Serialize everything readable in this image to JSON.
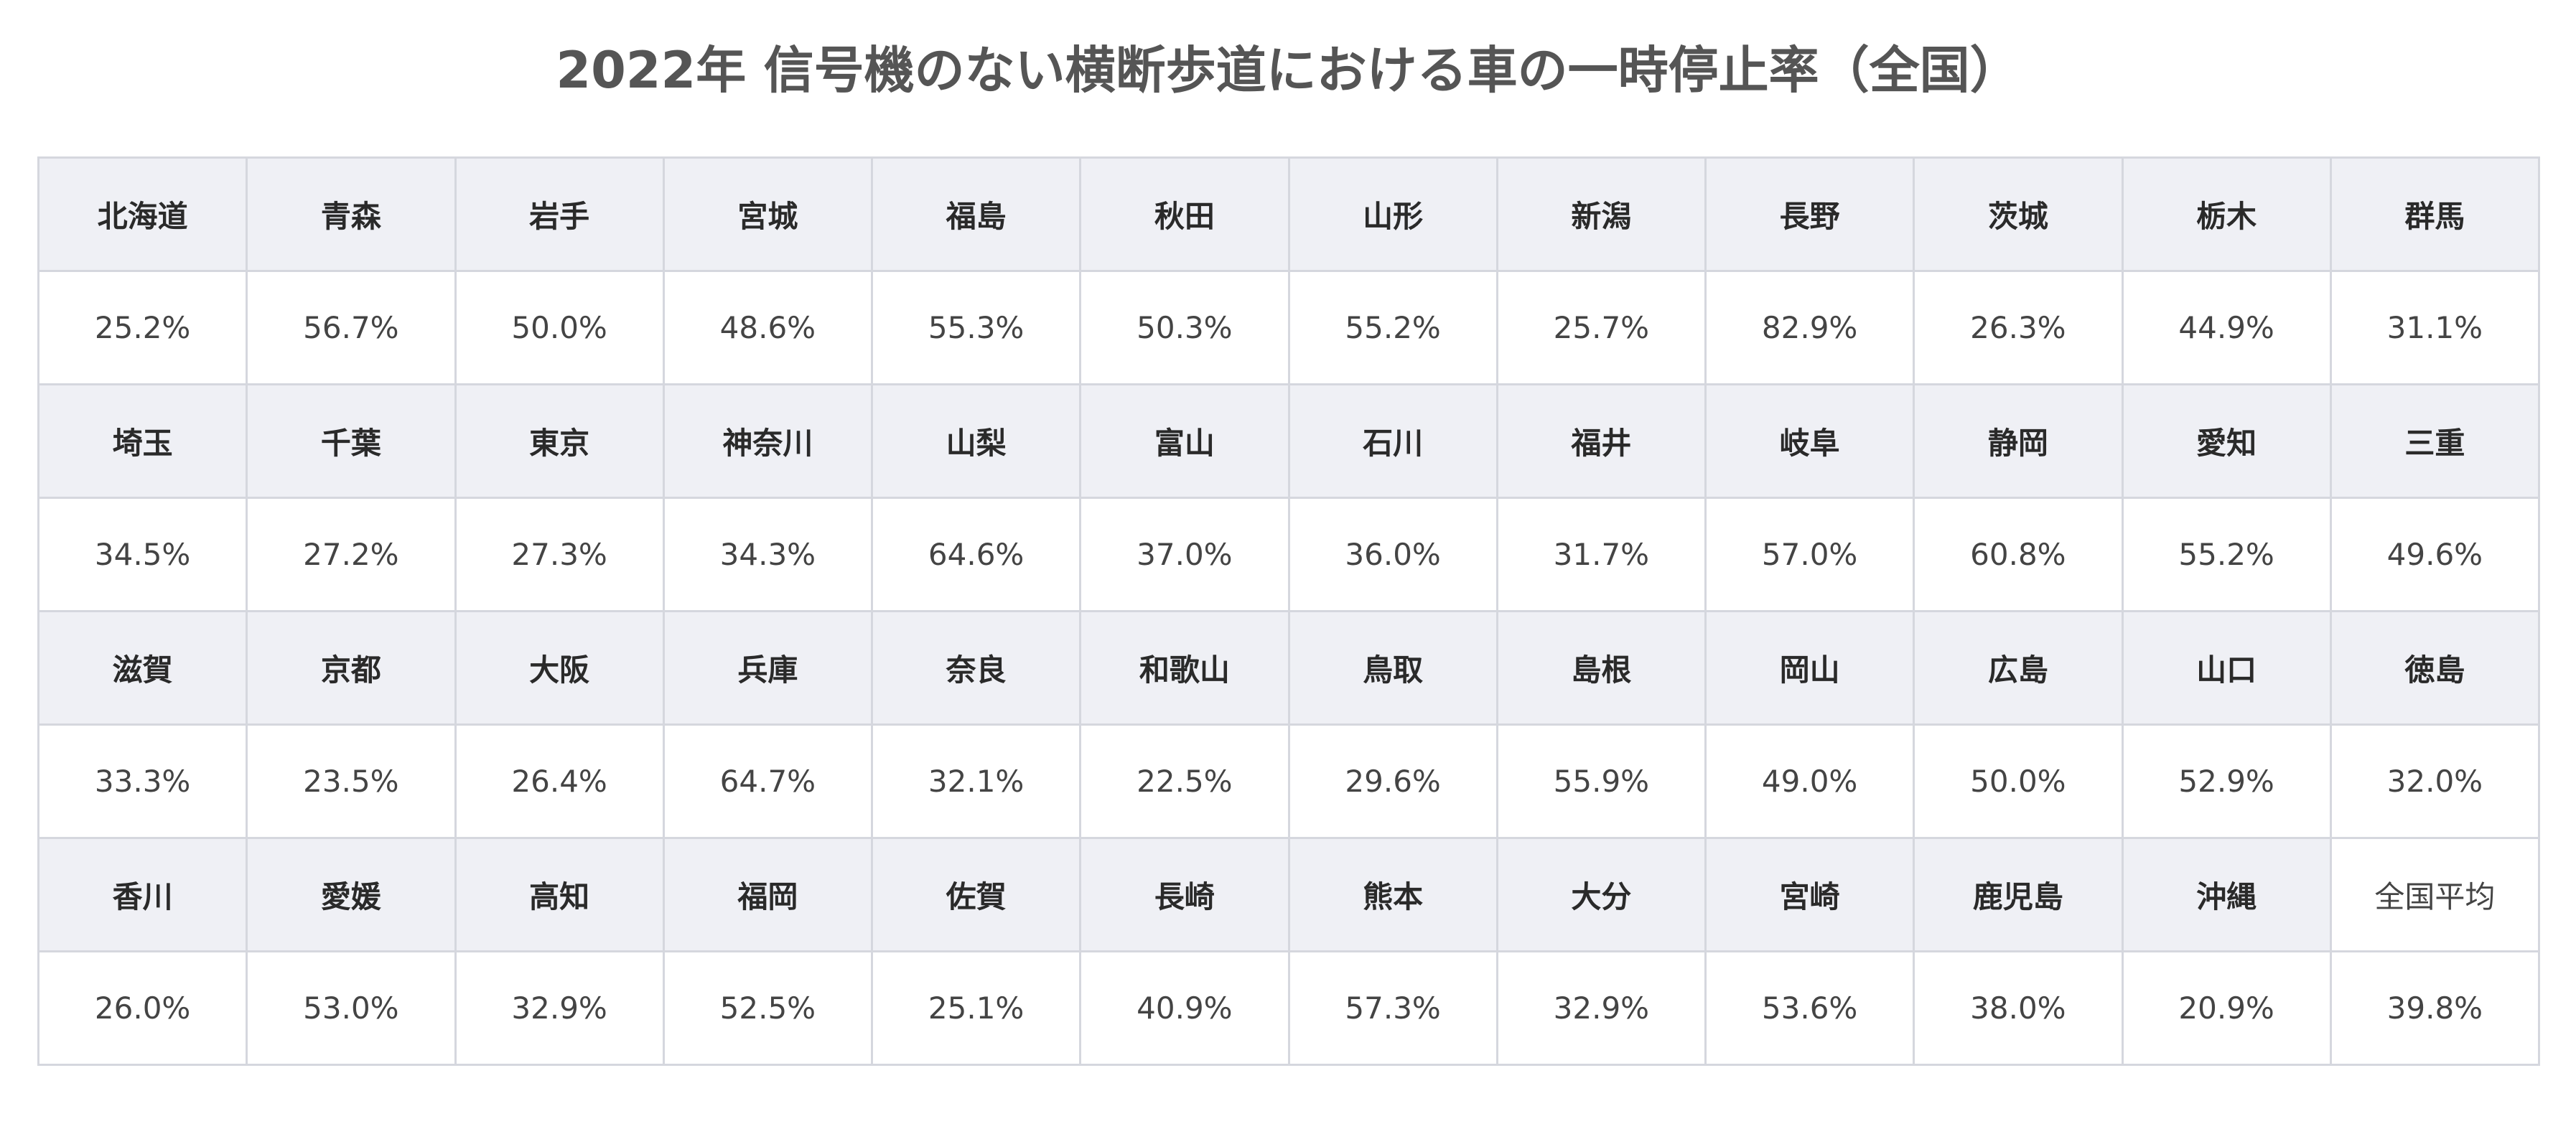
{
  "title": "2022年 信号機のない横断歩道における車の一時停止率（全国）",
  "rows": [
    {
      "names": [
        "北海道",
        "青森",
        "岩手",
        "宮城",
        "福島",
        "秋田",
        "山形",
        "新潟",
        "長野",
        "茨城",
        "栃木",
        "群馬"
      ],
      "values": [
        "25.2%",
        "56.7%",
        "50.0%",
        "48.6%",
        "55.3%",
        "50.3%",
        "55.2%",
        "25.7%",
        "82.9%",
        "26.3%",
        "44.9%",
        "31.1%"
      ]
    },
    {
      "names": [
        "埼玉",
        "千葉",
        "東京",
        "神奈川",
        "山梨",
        "富山",
        "石川",
        "福井",
        "岐阜",
        "静岡",
        "愛知",
        "三重"
      ],
      "values": [
        "34.5%",
        "27.2%",
        "27.3%",
        "34.3%",
        "64.6%",
        "37.0%",
        "36.0%",
        "31.7%",
        "57.0%",
        "60.8%",
        "55.2%",
        "49.6%"
      ]
    },
    {
      "names": [
        "滋賀",
        "京都",
        "大阪",
        "兵庫",
        "奈良",
        "和歌山",
        "鳥取",
        "島根",
        "岡山",
        "広島",
        "山口",
        "徳島"
      ],
      "values": [
        "33.3%",
        "23.5%",
        "26.4%",
        "64.7%",
        "32.1%",
        "22.5%",
        "29.6%",
        "55.9%",
        "49.0%",
        "50.0%",
        "52.9%",
        "32.0%"
      ]
    },
    {
      "names": [
        "香川",
        "愛媛",
        "高知",
        "福岡",
        "佐賀",
        "長崎",
        "熊本",
        "大分",
        "宮崎",
        "鹿児島",
        "沖縄",
        "全国平均"
      ],
      "values": [
        "26.0%",
        "53.0%",
        "32.9%",
        "52.5%",
        "25.1%",
        "40.9%",
        "57.3%",
        "32.9%",
        "53.6%",
        "38.0%",
        "20.9%",
        "39.8%"
      ]
    }
  ],
  "colors": {
    "header_bg": "#eff0f5",
    "border": "#d5d7de",
    "title_text": "#555555"
  }
}
